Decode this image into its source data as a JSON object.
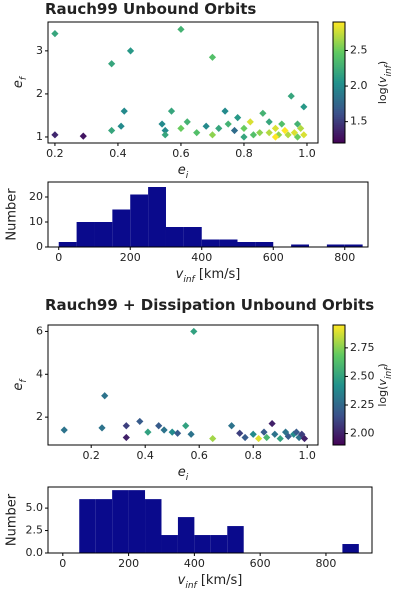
{
  "chart_data": [
    {
      "type": "scatter",
      "title": "Rauch99 Unbound Orbits",
      "xlabel": {
        "base": "e",
        "sub": "i"
      },
      "ylabel": {
        "base": "e",
        "sub": "f"
      },
      "x": [
        0.2,
        0.2,
        0.29,
        0.38,
        0.44,
        0.42,
        0.38,
        0.41,
        0.6,
        0.7,
        0.54,
        0.55,
        0.55,
        0.57,
        0.6,
        0.62,
        0.65,
        0.68,
        0.7,
        0.72,
        0.74,
        0.75,
        0.78,
        0.77,
        0.8,
        0.82,
        0.83,
        0.85,
        0.86,
        0.88,
        0.88,
        0.9,
        0.91,
        0.92,
        0.93,
        0.94,
        0.95,
        0.96,
        0.97,
        0.98,
        0.99,
        0.99,
        0.97,
        0.9,
        0.8
      ],
      "y": [
        3.4,
        1.05,
        1.02,
        2.7,
        3.0,
        1.6,
        1.15,
        1.25,
        3.5,
        2.85,
        1.3,
        1.15,
        1.05,
        1.6,
        1.2,
        1.35,
        1.1,
        1.25,
        1.05,
        1.2,
        1.6,
        1.3,
        1.45,
        1.15,
        1.2,
        1.35,
        1.05,
        1.1,
        1.55,
        1.1,
        1.35,
        1.2,
        1.05,
        1.3,
        1.15,
        1.05,
        1.95,
        1.1,
        1.0,
        1.2,
        1.05,
        1.7,
        1.3,
        1.0,
        1.0
      ],
      "c": [
        2.2,
        1.4,
        1.3,
        2.2,
        2.1,
        2.0,
        2.2,
        2.0,
        2.3,
        2.4,
        2.0,
        2.0,
        2.2,
        2.2,
        2.5,
        2.3,
        2.4,
        2.0,
        2.6,
        2.2,
        2.0,
        2.3,
        2.1,
        1.8,
        2.5,
        2.8,
        2.4,
        2.6,
        2.3,
        2.7,
        2.2,
        2.8,
        2.6,
        2.4,
        2.9,
        2.7,
        2.2,
        2.8,
        2.5,
        2.7,
        2.8,
        2.1,
        2.3,
        2.9,
        2.2
      ],
      "marker": "diamond",
      "colormap": "viridis",
      "xlim": [
        0.178,
        1.035
      ],
      "ylim": [
        0.86,
        3.67
      ],
      "xticks": [
        {
          "value": 0.2,
          "label": "0.2"
        },
        {
          "value": 0.4,
          "label": "0.4"
        },
        {
          "value": 0.6,
          "label": "0.6"
        },
        {
          "value": 0.8,
          "label": "0.8"
        },
        {
          "value": 1,
          "label": "1.0"
        }
      ],
      "yticks": [
        1,
        2,
        3
      ],
      "clim": [
        1.2,
        2.9
      ],
      "cticks": [
        1.5,
        {
          "value": 2,
          "label": "2.0"
        },
        2.5
      ],
      "clabel": {
        "pre": "log(",
        "base": "v",
        "sub": "inf",
        "post": ")"
      }
    },
    {
      "type": "histogram",
      "ylabel": "Number",
      "xlabel": {
        "base": "v",
        "sub": "inf",
        "post": " [km/s]"
      },
      "bins": [
        0,
        50,
        100,
        150,
        200,
        250,
        300,
        350,
        400,
        450,
        500,
        550,
        600,
        650,
        700,
        750,
        800,
        850
      ],
      "counts": [
        2,
        10,
        10,
        15,
        21,
        24,
        8,
        8,
        3,
        3,
        2,
        2,
        0,
        1,
        0,
        1,
        1
      ],
      "color": "#0a0a8c",
      "xlim": [
        -30,
        865
      ],
      "ylim": [
        0,
        26
      ],
      "xticks": [
        0,
        200,
        400,
        600,
        800
      ],
      "yticks": [
        0,
        10,
        20
      ]
    },
    {
      "type": "scatter",
      "title": "Rauch99 + Dissipation Unbound Orbits",
      "xlabel": {
        "base": "e",
        "sub": "i"
      },
      "ylabel": {
        "base": "e",
        "sub": "f"
      },
      "x": [
        0.1,
        0.25,
        0.24,
        0.33,
        0.33,
        0.38,
        0.41,
        0.45,
        0.47,
        0.5,
        0.52,
        0.55,
        0.58,
        0.57,
        0.65,
        0.72,
        0.75,
        0.77,
        0.8,
        0.82,
        0.84,
        0.85,
        0.87,
        0.88,
        0.9,
        0.92,
        0.93,
        0.95,
        0.97,
        0.98,
        0.99,
        0.96
      ],
      "y": [
        1.4,
        3.0,
        1.5,
        1.05,
        1.6,
        1.8,
        1.3,
        1.6,
        1.4,
        1.3,
        1.25,
        1.6,
        6.0,
        1.2,
        1.0,
        1.6,
        1.25,
        1.05,
        1.2,
        1.0,
        1.3,
        1.05,
        1.7,
        1.2,
        1.0,
        1.3,
        1.1,
        1.2,
        1.05,
        1.2,
        1.0,
        1.3
      ],
      "c": [
        2.3,
        2.3,
        2.3,
        2.0,
        2.1,
        2.2,
        2.5,
        2.2,
        2.3,
        2.4,
        2.2,
        2.5,
        2.5,
        2.3,
        2.8,
        2.3,
        2.1,
        2.2,
        2.4,
        2.9,
        2.2,
        2.6,
        2.0,
        2.3,
        2.5,
        2.3,
        2.2,
        2.4,
        2.3,
        2.1,
        2.0,
        2.2
      ],
      "marker": "diamond",
      "colormap": "viridis",
      "xlim": [
        0.04,
        1.04
      ],
      "ylim": [
        0.7,
        6.3
      ],
      "xticks": [
        {
          "value": 0.2,
          "label": "0.2"
        },
        {
          "value": 0.4,
          "label": "0.4"
        },
        {
          "value": 0.6,
          "label": "0.6"
        },
        {
          "value": 0.8,
          "label": "0.8"
        },
        {
          "value": 1,
          "label": "1.0"
        }
      ],
      "yticks": [
        2,
        4,
        6
      ],
      "clim": [
        1.9,
        2.95
      ],
      "cticks": [
        {
          "value": 2,
          "label": "2.00"
        },
        2.25,
        {
          "value": 2.5,
          "label": "2.50"
        },
        2.75
      ],
      "clabel": {
        "pre": "log(",
        "base": "v",
        "sub": "inf",
        "post": ")"
      }
    },
    {
      "type": "histogram",
      "ylabel": "Number",
      "xlabel": {
        "base": "v",
        "sub": "inf",
        "post": " [km/s]"
      },
      "bins": [
        50,
        100,
        150,
        200,
        250,
        300,
        350,
        400,
        450,
        500,
        550,
        600,
        650,
        700,
        750,
        800,
        850,
        900
      ],
      "counts": [
        6,
        6,
        7,
        7,
        6,
        2,
        4,
        2,
        2,
        3,
        0,
        0,
        0,
        0,
        0,
        0,
        1
      ],
      "color": "#0a0a8c",
      "xlim": [
        -45,
        940
      ],
      "ylim": [
        0,
        7.35
      ],
      "xticks": [
        0,
        200,
        400,
        600,
        800
      ],
      "yticks": [
        {
          "value": 0,
          "label": "0.0"
        },
        2.5,
        {
          "value": 5,
          "label": "5.0"
        }
      ]
    }
  ]
}
